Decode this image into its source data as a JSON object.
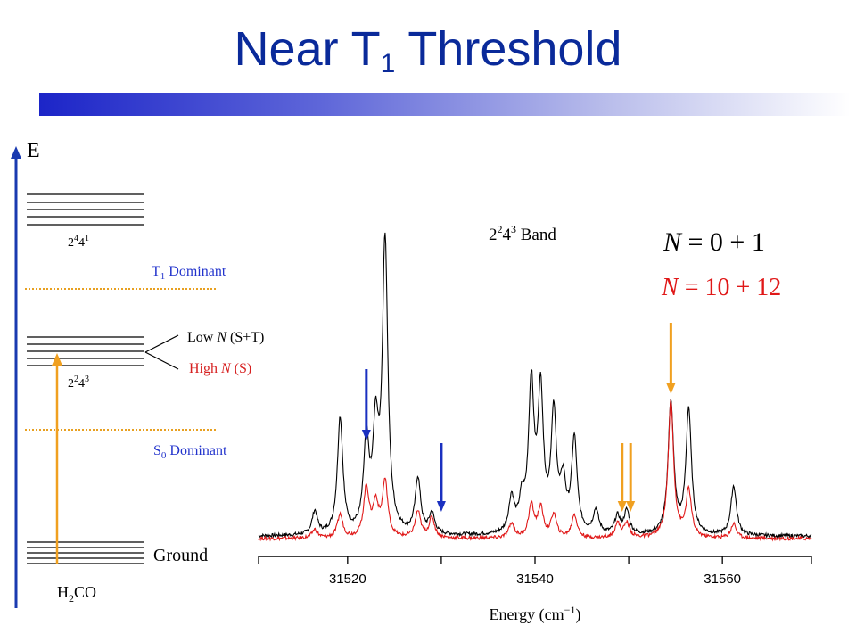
{
  "title": {
    "main": "Near T",
    "sub": "1",
    "rest": " Threshold"
  },
  "diagram": {
    "energy_axis_label": "E",
    "upper_level_label": {
      "base": "2",
      "sup1": "4",
      "mid": "4",
      "sup2": "1"
    },
    "middle_level_label": {
      "base": "2",
      "sup1": "2",
      "mid": "4",
      "sup2": "3"
    },
    "t1_dominant": {
      "pre": "T",
      "sub": "1",
      "post": " Dominant"
    },
    "s0_dominant": {
      "pre": "S",
      "sub": "0",
      "post": " Dominant"
    },
    "low_n": {
      "pre": "Low ",
      "n": "N",
      "post": " (S+T)"
    },
    "high_n": {
      "pre": "High ",
      "n": "N",
      "post": " (S)"
    },
    "ground_label": "Ground",
    "molecule": {
      "pre": "H",
      "sub": "2",
      "post": "CO"
    },
    "colors": {
      "axis": "#1a3ab0",
      "transition": "#f0a020",
      "dotted": "#e8a020",
      "t1_text": "#2233cc",
      "high_n": "#d62020"
    }
  },
  "legend": {
    "band": {
      "base": "2",
      "sup1": "2",
      "mid": "4",
      "sup2": "3",
      "post": " Band"
    },
    "black": {
      "n": "N",
      "rest": " = 0 + 1"
    },
    "red": {
      "n": "N",
      "rest": " = 10 + 12"
    }
  },
  "chart_data": {
    "type": "line",
    "xlabel": {
      "pre": "Energy (cm",
      "sup": "−1",
      "post": ")"
    },
    "xlim": [
      31510.5,
      31569.5
    ],
    "xticks": [
      31520,
      31540,
      31560
    ],
    "ylim": [
      0,
      1.0
    ],
    "series": [
      {
        "color": "#000000",
        "baseline": 0.02,
        "width": 0.35,
        "peaks": [
          [
            31516.5,
            0.08
          ],
          [
            31519.2,
            0.4
          ],
          [
            31522.0,
            0.31
          ],
          [
            31523.0,
            0.33
          ],
          [
            31524.0,
            1.0
          ],
          [
            31527.5,
            0.19
          ],
          [
            31529.0,
            0.07
          ],
          [
            31537.5,
            0.12
          ],
          [
            31538.6,
            0.1
          ],
          [
            31539.6,
            0.5
          ],
          [
            31540.6,
            0.47
          ],
          [
            31542.0,
            0.4
          ],
          [
            31543.0,
            0.16
          ],
          [
            31544.2,
            0.32
          ],
          [
            31546.5,
            0.08
          ],
          [
            31548.8,
            0.06
          ],
          [
            31549.8,
            0.08
          ],
          [
            31554.5,
            0.46
          ],
          [
            31556.4,
            0.43
          ],
          [
            31561.2,
            0.17
          ]
        ]
      },
      {
        "color": "#e01818",
        "baseline": 0.012,
        "width": 0.35,
        "peaks": [
          [
            31516.5,
            0.03
          ],
          [
            31519.2,
            0.08
          ],
          [
            31522.0,
            0.17
          ],
          [
            31523.0,
            0.11
          ],
          [
            31524.0,
            0.19
          ],
          [
            31527.5,
            0.09
          ],
          [
            31529.0,
            0.07
          ],
          [
            31537.5,
            0.05
          ],
          [
            31539.6,
            0.11
          ],
          [
            31540.6,
            0.1
          ],
          [
            31542.0,
            0.08
          ],
          [
            31544.2,
            0.08
          ],
          [
            31548.8,
            0.05
          ],
          [
            31549.8,
            0.05
          ],
          [
            31554.5,
            0.47
          ],
          [
            31556.4,
            0.16
          ],
          [
            31561.2,
            0.05
          ]
        ]
      }
    ],
    "arrows": [
      {
        "x": 31522.0,
        "color": "#1a30c0"
      },
      {
        "x": 31530.0,
        "color": "#1a30c0"
      },
      {
        "x": 31549.3,
        "color": "#f0a020"
      },
      {
        "x": 31550.2,
        "color": "#f0a020"
      },
      {
        "x": 31554.5,
        "color": "#f0a020"
      }
    ]
  }
}
